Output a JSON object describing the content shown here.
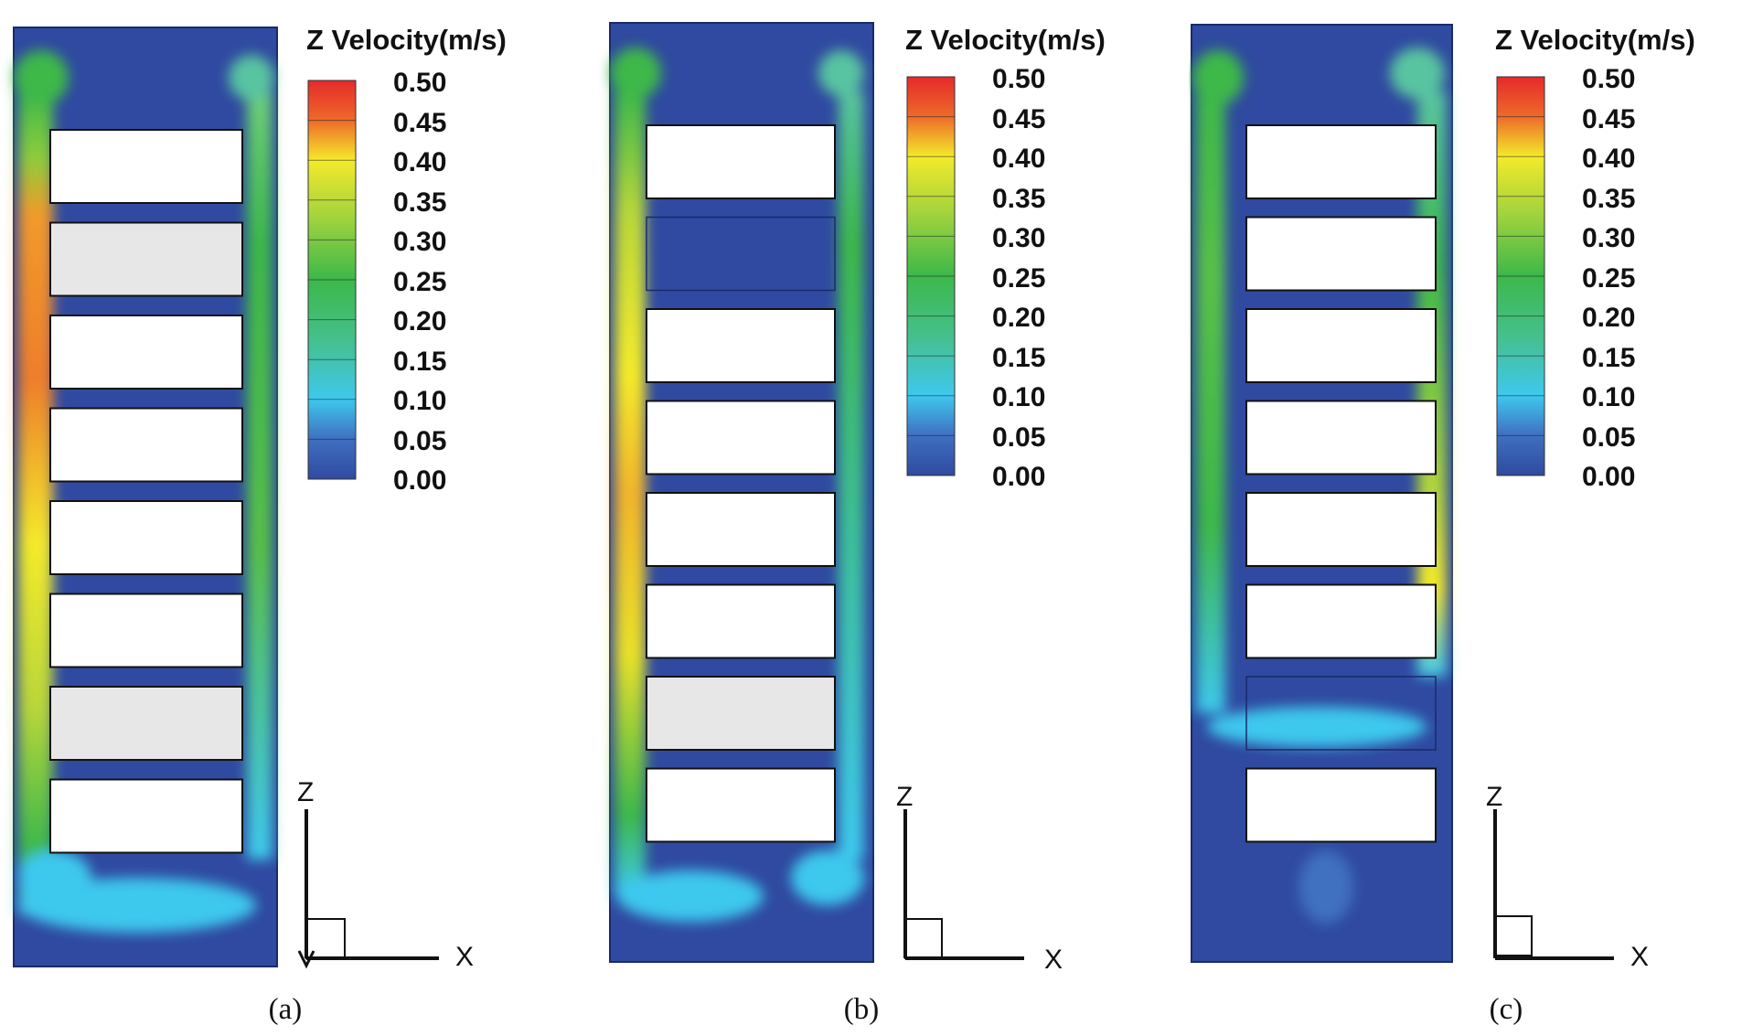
{
  "figure": {
    "panels": [
      {
        "id": "a",
        "caption": "(a)",
        "legend_title": "Z Velocity(m/s)",
        "legend_ticks": [
          "0.50",
          "0.45",
          "0.40",
          "0.35",
          "0.30",
          "0.25",
          "0.20",
          "0.15",
          "0.10",
          "0.05",
          "0.00"
        ],
        "axis_z": "Z",
        "axis_x": "X",
        "blocks": [
          "open",
          "inactive",
          "open",
          "open",
          "open",
          "open",
          "inactive",
          "open"
        ]
      },
      {
        "id": "b",
        "caption": "(b)",
        "legend_title": "Z Velocity(m/s)",
        "legend_ticks": [
          "0.50",
          "0.45",
          "0.40",
          "0.35",
          "0.30",
          "0.25",
          "0.20",
          "0.15",
          "0.10",
          "0.05",
          "0.00"
        ],
        "axis_z": "Z",
        "axis_x": "X",
        "blocks": [
          "open",
          "blocked",
          "open",
          "open",
          "open",
          "open",
          "inactive",
          "open"
        ]
      },
      {
        "id": "c",
        "caption": "(c)",
        "legend_title": "Z Velocity(m/s)",
        "legend_ticks": [
          "0.50",
          "0.45",
          "0.40",
          "0.35",
          "0.30",
          "0.25",
          "0.20",
          "0.15",
          "0.10",
          "0.05",
          "0.00"
        ],
        "axis_z": "Z",
        "axis_x": "X",
        "blocks": [
          "open",
          "open",
          "open",
          "open",
          "open",
          "open",
          "blocked",
          "open"
        ]
      }
    ],
    "colors": {
      "background": "#2f4aa0",
      "low": "#3f5ab0",
      "cyan": "#3ec8ee",
      "green": "#3cb84a",
      "yellow": "#f4ea2a",
      "orange": "#f29a2a",
      "red": "#e52a2a",
      "block_fill": "#ffffff",
      "inactive_fill": "#e7e7e7"
    }
  }
}
